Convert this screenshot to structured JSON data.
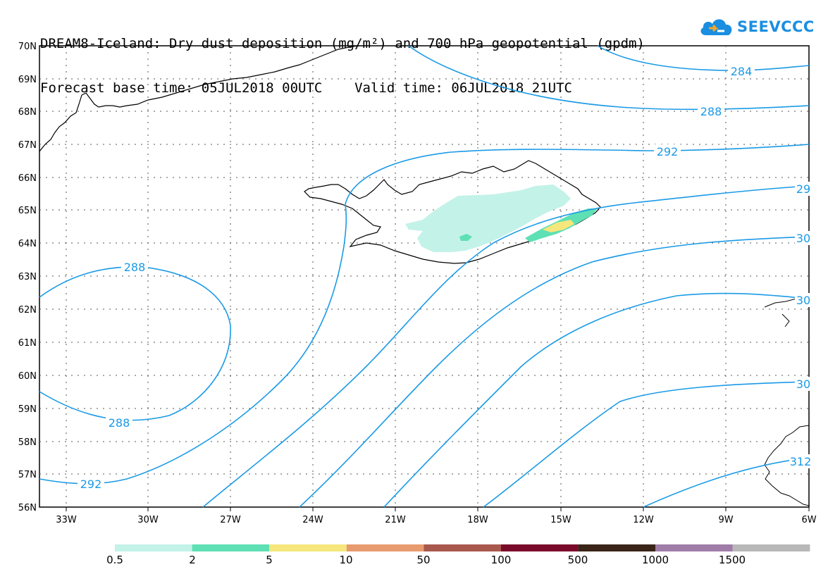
{
  "header": {
    "title_line1": "DREAM8-Iceland: Dry dust deposition (mg/m²) and 700 hPa geopotential (gpdm)",
    "title_line2": "Forecast base time: 05JUL2018 00UTC    Valid time: 06JUL2018 21UTC"
  },
  "logo": {
    "text": "SEEVCCC",
    "icon": "cloud-icon",
    "color": "#1a8ee0"
  },
  "map": {
    "lat_labels": [
      "70N",
      "69N",
      "68N",
      "67N",
      "66N",
      "65N",
      "64N",
      "63N",
      "62N",
      "61N",
      "60N",
      "59N",
      "58N",
      "57N",
      "56N"
    ],
    "lon_labels": [
      "33W",
      "30W",
      "27W",
      "24W",
      "21W",
      "18W",
      "15W",
      "12W",
      "9W",
      "6W"
    ],
    "contour_color": "#1a9ae6",
    "contour_labels": [
      "284",
      "288",
      "292",
      "29",
      "30",
      "288",
      "288",
      "292",
      "30",
      "30",
      "312"
    ]
  },
  "colorbar": {
    "labels": [
      "0.5",
      "2",
      "5",
      "10",
      "50",
      "100",
      "500",
      "1000",
      "1500"
    ],
    "colors": [
      "#c3f2e8",
      "#5ee0b4",
      "#f5e77c",
      "#e89b6e",
      "#a8584d",
      "#7a0a2a",
      "#3a2418",
      "#a07ca8",
      "#b8b8b8"
    ]
  }
}
